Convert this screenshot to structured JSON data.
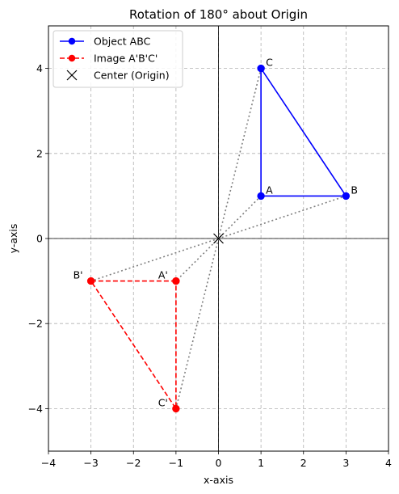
{
  "chart_data": {
    "type": "line",
    "title": "Rotation of 180° about Origin",
    "xlabel": "x-axis",
    "ylabel": "y-axis",
    "xlim": [
      -4,
      4
    ],
    "ylim": [
      -5,
      5
    ],
    "x_ticks": [
      -4,
      -3,
      -2,
      -1,
      0,
      1,
      2,
      3,
      4
    ],
    "y_ticks": [
      -4,
      -2,
      0,
      2,
      4
    ],
    "x_tick_labels": [
      "−4",
      "−3",
      "−2",
      "−1",
      "0",
      "1",
      "2",
      "3",
      "4"
    ],
    "y_tick_labels": [
      "−4",
      "−2",
      "0",
      "2",
      "4"
    ],
    "grid": true,
    "legend_position": "top-left",
    "series": [
      {
        "name": "Object ABC",
        "color": "#0000ff",
        "line_style": "solid",
        "marker": "circle",
        "points": [
          {
            "label": "A",
            "x": 1,
            "y": 1
          },
          {
            "label": "B",
            "x": 3,
            "y": 1
          },
          {
            "label": "C",
            "x": 1,
            "y": 4
          }
        ]
      },
      {
        "name": "Image A'B'C'",
        "color": "#ff0000",
        "line_style": "dashed",
        "marker": "circle",
        "points": [
          {
            "label": "A'",
            "x": -1,
            "y": -1
          },
          {
            "label": "B'",
            "x": -3,
            "y": -1
          },
          {
            "label": "C'",
            "x": -1,
            "y": -4
          }
        ]
      },
      {
        "name": "Center (Origin)",
        "color": "#000000",
        "line_style": "none",
        "marker": "x",
        "points": [
          {
            "label": "",
            "x": 0,
            "y": 0
          }
        ]
      }
    ],
    "connectors": {
      "color": "#808080",
      "line_style": "dotted",
      "through": [
        0,
        0
      ]
    }
  }
}
